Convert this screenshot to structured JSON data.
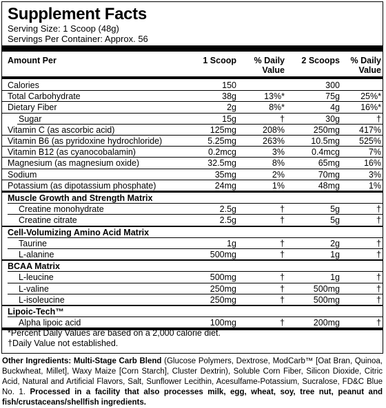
{
  "title": "Supplement Facts",
  "serving_size": "Serving Size: 1 Scoop (48g)",
  "servings_per_container": "Servings Per Container: Approx. 56",
  "columns": {
    "amount_per": "Amount Per",
    "scoop1": "1 Scoop",
    "dv1_line1": "% Daily",
    "dv1_line2": "Value",
    "scoop2": "2 Scoops",
    "dv2_line1": "% Daily",
    "dv2_line2": "Value"
  },
  "rows": [
    {
      "name": "Calories",
      "a1": "150",
      "d1": "",
      "a2": "300",
      "d2": ""
    },
    {
      "name": "Total Carbohydrate",
      "a1": "38g",
      "d1": "13%*",
      "a2": "75g",
      "d2": "25%*"
    },
    {
      "name": "Dietary Fiber",
      "a1": "2g",
      "d1": "8%*",
      "a2": "4g",
      "d2": "16%*"
    },
    {
      "name": "Sugar",
      "a1": "15g",
      "d1": "†",
      "a2": "30g",
      "d2": "†"
    },
    {
      "name": "Vitamin C (as ascorbic acid)",
      "a1": "125mg",
      "d1": "208%",
      "a2": "250mg",
      "d2": "417%"
    },
    {
      "name": "Vitamin B6 (as pyridoxine hydrochloride)",
      "a1": "5.25mg",
      "d1": "263%",
      "a2": "10.5mg",
      "d2": "525%"
    },
    {
      "name": "Vitamin B12 (as cyanocobalamin)",
      "a1": "0.2mcg",
      "d1": "3%",
      "a2": "0.4mcg",
      "d2": "7%"
    },
    {
      "name": "Magnesium (as magnesium oxide)",
      "a1": "32.5mg",
      "d1": "8%",
      "a2": "65mg",
      "d2": "16%"
    },
    {
      "name": "Sodium",
      "a1": "35mg",
      "d1": "2%",
      "a2": "70mg",
      "d2": "3%"
    },
    {
      "name": "Potassium (as dipotassium phosphate)",
      "a1": "24mg",
      "d1": "1%",
      "a2": "48mg",
      "d2": "1%"
    }
  ],
  "sections": [
    {
      "title": "Muscle Growth and Strength Matrix",
      "items": [
        {
          "name": "Creatine monohydrate",
          "a1": "2.5g",
          "d1": "†",
          "a2": "5g",
          "d2": "†"
        },
        {
          "name": "Creatine citrate",
          "a1": "2.5g",
          "d1": "†",
          "a2": "5g",
          "d2": "†"
        }
      ]
    },
    {
      "title": "Cell-Volumizing Amino Acid Matrix",
      "items": [
        {
          "name": "Taurine",
          "a1": "1g",
          "d1": "†",
          "a2": "2g",
          "d2": "†"
        },
        {
          "name": "L-alanine",
          "a1": "500mg",
          "d1": "†",
          "a2": "1g",
          "d2": "†"
        }
      ]
    },
    {
      "title": "BCAA Matrix",
      "items": [
        {
          "name": "L-leucine",
          "a1": "500mg",
          "d1": "†",
          "a2": "1g",
          "d2": "†"
        },
        {
          "name": "L-valine",
          "a1": "250mg",
          "d1": "†",
          "a2": "500mg",
          "d2": "†"
        },
        {
          "name": "L-isoleucine",
          "a1": "250mg",
          "d1": "†",
          "a2": "500mg",
          "d2": "†"
        }
      ]
    },
    {
      "title": "Lipoic-Tech™",
      "items": [
        {
          "name": "Alpha lipoic acid",
          "a1": "100mg",
          "d1": "†",
          "a2": "200mg",
          "d2": "†"
        }
      ]
    }
  ],
  "footnote1": "*Percent Daily Values are based on a 2,000 calorie diet.",
  "footnote2": "†Daily Value not established.",
  "ingredients": {
    "label": "Other Ingredients: Multi-Stage Carb Blend",
    "body": " (Glucose Polymers, Dextrose, ModCarb™ [Oat Bran, Quinoa, Buckwheat, Millet], Waxy Maize [Corn Starch], Cluster Dextrin), Soluble Corn Fiber, Silicon Dioxide, Citric Acid, Natural and Artificial Flavors, Salt, Sunflower Lecithin, Acesulfame-Potassium, Sucralose, FD&C Blue No. 1. ",
    "allergen": "Processed in a facility that also processes milk, egg, wheat, soy, tree nut, peanut and fish/crustaceans/shellfish ingredients."
  }
}
